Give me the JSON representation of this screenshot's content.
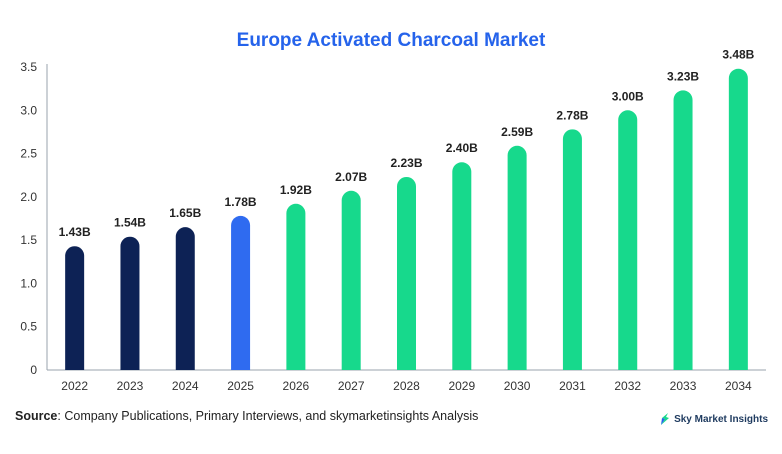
{
  "chart_data": {
    "type": "bar",
    "title": "Europe Activated Charcoal Market",
    "categories": [
      "2022",
      "2023",
      "2024",
      "2025",
      "2026",
      "2027",
      "2028",
      "2029",
      "2030",
      "2031",
      "2032",
      "2033",
      "2034"
    ],
    "values": [
      1.43,
      1.54,
      1.65,
      1.78,
      1.92,
      2.07,
      2.23,
      2.4,
      2.59,
      2.78,
      3.0,
      3.23,
      3.48
    ],
    "data_labels": [
      "1.43B",
      "1.54B",
      "1.65B",
      "1.78B",
      "1.92B",
      "2.07B",
      "2.23B",
      "2.40B",
      "2.59B",
      "2.78B",
      "3.00B",
      "3.23B",
      "3.48B"
    ],
    "bar_colors": [
      "#0d2255",
      "#0d2255",
      "#0d2255",
      "#2f6bf0",
      "#17d98c",
      "#17d98c",
      "#17d98c",
      "#17d98c",
      "#17d98c",
      "#17d98c",
      "#17d98c",
      "#17d98c",
      "#17d98c"
    ],
    "ylim": [
      0,
      3.5
    ],
    "yticks": [
      "0",
      "0.5",
      "1.0",
      "1.5",
      "2.0",
      "2.5",
      "3.0",
      "3.5"
    ],
    "xlabel": "",
    "ylabel": "",
    "grid": false
  },
  "source": {
    "label": "Source",
    "text": ": Company Publications, Primary Interviews, and skymarketinsights Analysis"
  },
  "brand": {
    "name": "Sky Market Insights",
    "icon": "sky-market-insights-logo-icon"
  },
  "colors": {
    "title": "#2563eb",
    "historical": "#0d2255",
    "current": "#2f6bf0",
    "forecast": "#17d98c"
  }
}
